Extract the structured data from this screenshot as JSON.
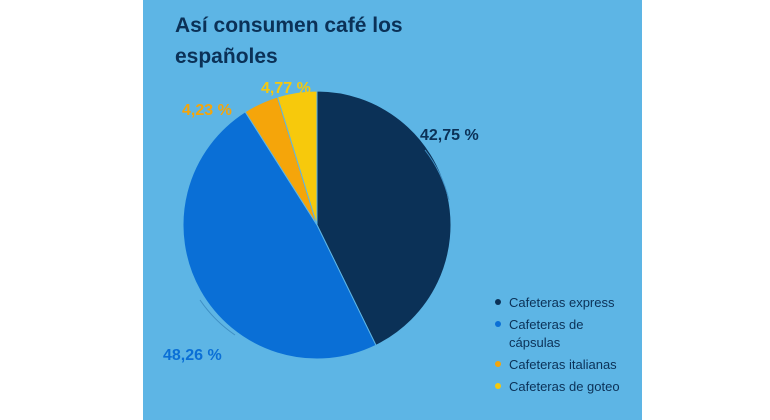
{
  "chart_data": {
    "type": "pie",
    "title": "Así consumen café los españoles",
    "slices": [
      {
        "name": "Cafeteras express",
        "value": 42.75,
        "label": "42,75 %",
        "color": "#0b3157"
      },
      {
        "name": "Cafeteras de cápsulas",
        "value": 48.26,
        "label": "48,26 %",
        "color": "#0a6fd6"
      },
      {
        "name": "Cafeteras italianas",
        "value": 4.23,
        "label": "4,23 %",
        "color": "#f5a50a"
      },
      {
        "name": "Cafeteras de goteo",
        "value": 4.77,
        "label": "4,77 %",
        "color": "#f7c90c"
      }
    ],
    "legend_position": "bottom-right",
    "label_colors": [
      "#0b3157",
      "#0a6fd6",
      "#f5a50a",
      "#f7c90c"
    ]
  }
}
